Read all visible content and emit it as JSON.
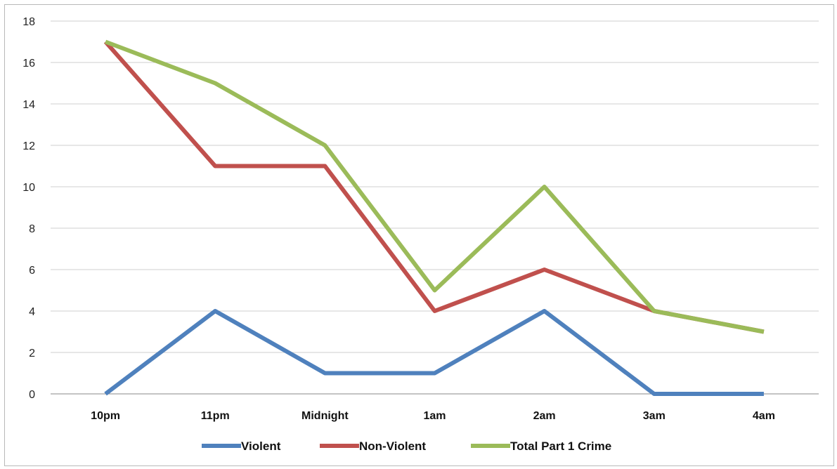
{
  "chart_data": {
    "type": "line",
    "title": "",
    "xlabel": "",
    "ylabel": "",
    "categories": [
      "10pm",
      "11pm",
      "Midnight",
      "1am",
      "2am",
      "3am",
      "4am"
    ],
    "ylim": [
      0,
      18
    ],
    "yticks": [
      0,
      2,
      4,
      6,
      8,
      10,
      12,
      14,
      16,
      18
    ],
    "grid": true,
    "legend_position": "bottom",
    "series": [
      {
        "name": "Violent",
        "color": "#4f81bd",
        "values": [
          0,
          4,
          1,
          1,
          4,
          0,
          0
        ]
      },
      {
        "name": "Non-Violent",
        "color": "#c0504d",
        "values": [
          17,
          11,
          11,
          4,
          6,
          4,
          3
        ]
      },
      {
        "name": "Total Part 1 Crime",
        "color": "#9bbb59",
        "values": [
          17,
          15,
          12,
          5,
          10,
          4,
          3
        ]
      }
    ]
  }
}
